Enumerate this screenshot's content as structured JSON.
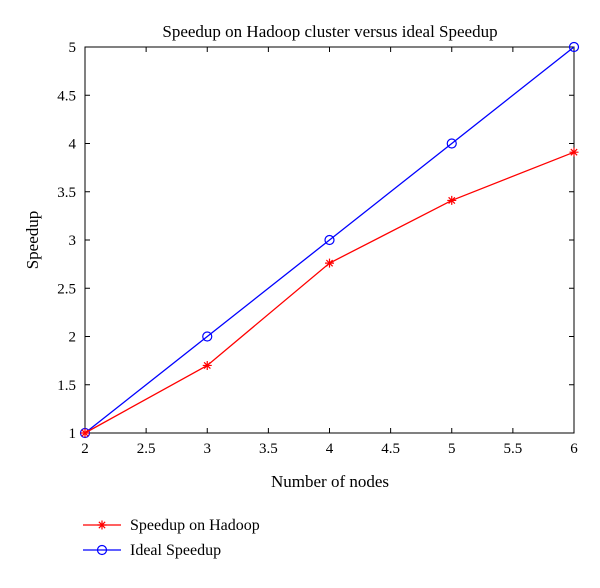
{
  "chart_data": {
    "type": "line",
    "title": "Speedup on Hadoop cluster versus ideal Speedup",
    "xlabel": "Number of nodes",
    "ylabel": "Speedup",
    "xlim": [
      2,
      6
    ],
    "ylim": [
      1,
      5
    ],
    "x_ticks": [
      "2",
      "2.5",
      "3",
      "3.5",
      "4",
      "4.5",
      "5",
      "5.5",
      "6"
    ],
    "y_ticks": [
      "1",
      "1.5",
      "2",
      "2.5",
      "3",
      "3.5",
      "4",
      "4.5",
      "5"
    ],
    "grid": false,
    "legend_position": "bottom-left outside",
    "x": [
      2,
      3,
      4,
      5,
      6
    ],
    "series": [
      {
        "name": "Speedup on Hadoop",
        "values": [
          1.0,
          1.7,
          2.76,
          3.41,
          3.91
        ],
        "color": "#ff0000",
        "marker": "asterisk"
      },
      {
        "name": "Ideal Speedup",
        "values": [
          1.0,
          2.0,
          3.0,
          4.0,
          5.0
        ],
        "color": "#0000ff",
        "marker": "circle"
      }
    ]
  }
}
